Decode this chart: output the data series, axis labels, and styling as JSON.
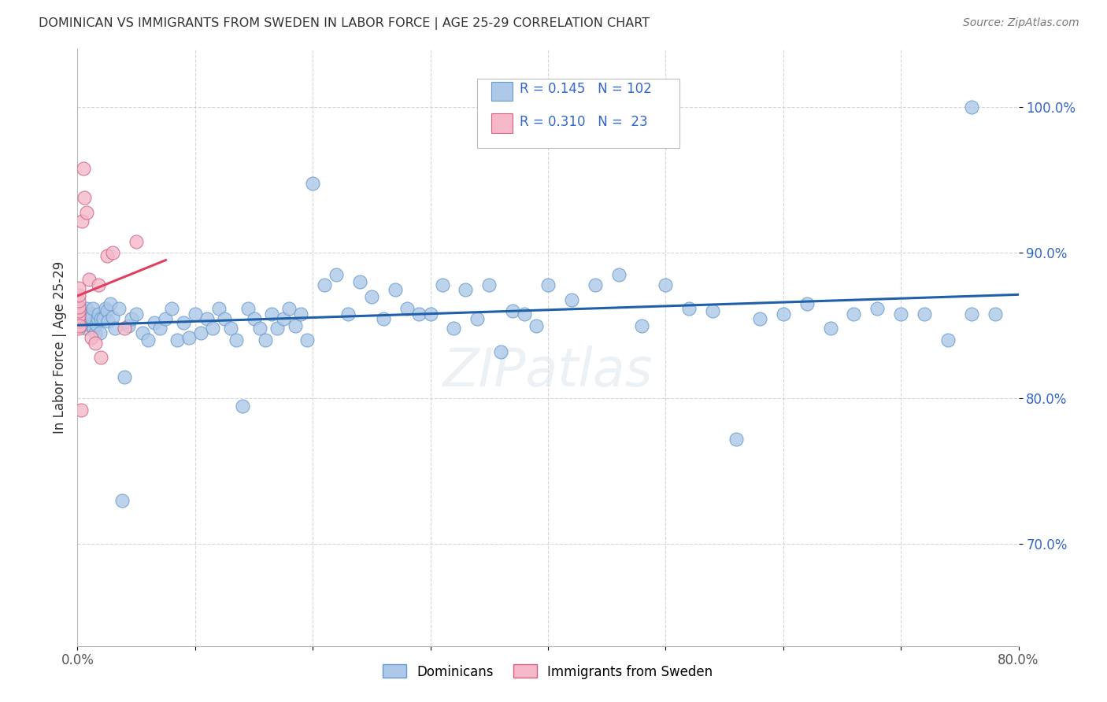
{
  "title": "DOMINICAN VS IMMIGRANTS FROM SWEDEN IN LABOR FORCE | AGE 25-29 CORRELATION CHART",
  "source": "Source: ZipAtlas.com",
  "ylabel": "In Labor Force | Age 25-29",
  "xlim": [
    0.0,
    0.8
  ],
  "ylim": [
    0.63,
    1.04
  ],
  "yticks": [
    0.7,
    0.8,
    0.9,
    1.0
  ],
  "yticklabels": [
    "70.0%",
    "80.0%",
    "90.0%",
    "100.0%"
  ],
  "xticks": [
    0.0,
    0.1,
    0.2,
    0.3,
    0.4,
    0.5,
    0.6,
    0.7,
    0.8
  ],
  "xticklabels": [
    "0.0%",
    "",
    "",
    "",
    "",
    "",
    "",
    "",
    "80.0%"
  ],
  "blue_R": 0.145,
  "blue_N": 102,
  "pink_R": 0.31,
  "pink_N": 23,
  "blue_color": "#adc8e8",
  "pink_color": "#f5b8c8",
  "blue_line_color": "#2060a8",
  "pink_line_color": "#e04060",
  "legend_blue_label": "Dominicans",
  "legend_pink_label": "Immigrants from Sweden",
  "blue_x": [
    0.002,
    0.003,
    0.004,
    0.005,
    0.006,
    0.007,
    0.008,
    0.009,
    0.01,
    0.011,
    0.012,
    0.013,
    0.014,
    0.015,
    0.016,
    0.017,
    0.018,
    0.019,
    0.02,
    0.022,
    0.024,
    0.025,
    0.026,
    0.028,
    0.03,
    0.032,
    0.035,
    0.038,
    0.04,
    0.043,
    0.046,
    0.05,
    0.055,
    0.06,
    0.065,
    0.07,
    0.075,
    0.08,
    0.085,
    0.09,
    0.095,
    0.1,
    0.105,
    0.11,
    0.115,
    0.12,
    0.125,
    0.13,
    0.135,
    0.14,
    0.145,
    0.15,
    0.155,
    0.16,
    0.165,
    0.17,
    0.175,
    0.18,
    0.185,
    0.19,
    0.195,
    0.2,
    0.21,
    0.22,
    0.23,
    0.24,
    0.25,
    0.26,
    0.27,
    0.28,
    0.29,
    0.3,
    0.31,
    0.32,
    0.33,
    0.34,
    0.35,
    0.36,
    0.37,
    0.38,
    0.39,
    0.4,
    0.42,
    0.44,
    0.46,
    0.48,
    0.5,
    0.52,
    0.54,
    0.56,
    0.58,
    0.6,
    0.62,
    0.64,
    0.66,
    0.68,
    0.7,
    0.72,
    0.74,
    0.76,
    0.78,
    0.76
  ],
  "blue_y": [
    0.857,
    0.862,
    0.853,
    0.858,
    0.855,
    0.848,
    0.862,
    0.854,
    0.851,
    0.858,
    0.856,
    0.862,
    0.848,
    0.845,
    0.851,
    0.855,
    0.858,
    0.845,
    0.855,
    0.855,
    0.862,
    0.86,
    0.853,
    0.865,
    0.856,
    0.848,
    0.862,
    0.73,
    0.815,
    0.85,
    0.855,
    0.858,
    0.845,
    0.84,
    0.852,
    0.848,
    0.855,
    0.862,
    0.84,
    0.852,
    0.842,
    0.858,
    0.845,
    0.855,
    0.848,
    0.862,
    0.855,
    0.848,
    0.84,
    0.795,
    0.862,
    0.855,
    0.848,
    0.84,
    0.858,
    0.848,
    0.855,
    0.862,
    0.85,
    0.858,
    0.84,
    0.948,
    0.878,
    0.885,
    0.858,
    0.88,
    0.87,
    0.855,
    0.875,
    0.862,
    0.858,
    0.858,
    0.878,
    0.848,
    0.875,
    0.855,
    0.878,
    0.832,
    0.86,
    0.858,
    0.85,
    0.878,
    0.868,
    0.878,
    0.885,
    0.85,
    0.878,
    0.862,
    0.86,
    0.772,
    0.855,
    0.858,
    0.865,
    0.848,
    0.858,
    0.862,
    0.858,
    0.858,
    0.84,
    0.858,
    0.858,
    1.0
  ],
  "pink_x": [
    0.001,
    0.001,
    0.001,
    0.001,
    0.001,
    0.001,
    0.001,
    0.001,
    0.002,
    0.003,
    0.004,
    0.005,
    0.006,
    0.008,
    0.01,
    0.012,
    0.015,
    0.018,
    0.02,
    0.025,
    0.03,
    0.04,
    0.05
  ],
  "pink_y": [
    0.848,
    0.853,
    0.857,
    0.86,
    0.863,
    0.867,
    0.871,
    0.876,
    0.85,
    0.792,
    0.922,
    0.958,
    0.938,
    0.928,
    0.882,
    0.842,
    0.838,
    0.878,
    0.828,
    0.898,
    0.9,
    0.848,
    0.908
  ]
}
